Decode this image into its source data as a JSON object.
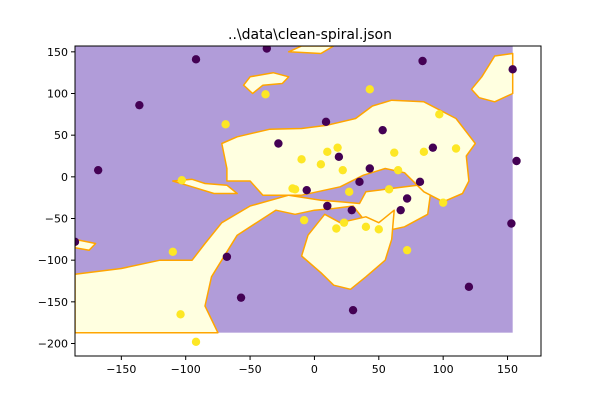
{
  "chart_data": {
    "type": "scatter",
    "title": "..\\data\\clean-spiral.json",
    "xlabel": "",
    "ylabel": "",
    "xlim": [
      -186,
      176
    ],
    "ylim": [
      -215,
      157
    ],
    "x_ticks": [
      -150,
      -100,
      -50,
      0,
      50,
      100,
      150
    ],
    "y_ticks": [
      150,
      100,
      50,
      0,
      -50,
      -100,
      -150,
      -200
    ],
    "grid": false,
    "legend": "none",
    "colors": {
      "region_class_0": "#b19cd9",
      "region_class_1": "#ffffe0",
      "boundary": "#ffa500",
      "class_0": "#440154",
      "class_1": "#fde725"
    },
    "decision_regions": {
      "extent": {
        "x": [
          -186,
          154
        ],
        "y": [
          -187,
          157
        ]
      },
      "background_class": 0,
      "class_1_regions": [
        [
          [
            -186,
            -187
          ],
          [
            -186,
            -117
          ],
          [
            -150,
            -110
          ],
          [
            -120,
            -100
          ],
          [
            -95,
            -100
          ],
          [
            -85,
            -80
          ],
          [
            -72,
            -55
          ],
          [
            -50,
            -35
          ],
          [
            -20,
            -22
          ],
          [
            5,
            -28
          ],
          [
            20,
            -30
          ],
          [
            35,
            -32
          ],
          [
            40,
            -18
          ],
          [
            55,
            -15
          ],
          [
            80,
            -10
          ],
          [
            90,
            -22
          ],
          [
            88,
            -45
          ],
          [
            70,
            -60
          ],
          [
            55,
            -65
          ],
          [
            48,
            -70
          ],
          [
            30,
            -35
          ],
          [
            15,
            -38
          ],
          [
            0,
            -40
          ],
          [
            -15,
            -45
          ],
          [
            -30,
            -40
          ],
          [
            -45,
            -55
          ],
          [
            -60,
            -70
          ],
          [
            -68,
            -90
          ],
          [
            -80,
            -120
          ],
          [
            -85,
            -155
          ],
          [
            -75,
            -187
          ]
        ],
        [
          [
            -68,
            -5
          ],
          [
            -50,
            -5
          ],
          [
            -40,
            -22
          ],
          [
            -10,
            -22
          ],
          [
            20,
            -12
          ],
          [
            38,
            2
          ],
          [
            55,
            10
          ],
          [
            70,
            5
          ],
          [
            85,
            -18
          ],
          [
            100,
            -30
          ],
          [
            115,
            -20
          ],
          [
            120,
            -5
          ],
          [
            118,
            25
          ],
          [
            125,
            40
          ],
          [
            110,
            70
          ],
          [
            85,
            90
          ],
          [
            60,
            92
          ],
          [
            45,
            85
          ],
          [
            32,
            70
          ],
          [
            10,
            62
          ],
          [
            -10,
            58
          ],
          [
            -35,
            57
          ],
          [
            -60,
            48
          ],
          [
            -72,
            40
          ],
          [
            -68,
            10
          ]
        ],
        [
          [
            -110,
            -5
          ],
          [
            -95,
            -3
          ],
          [
            -85,
            -8
          ],
          [
            -68,
            -10
          ],
          [
            -60,
            -20
          ],
          [
            -78,
            -20
          ],
          [
            -95,
            -12
          ]
        ],
        [
          [
            8,
            -45
          ],
          [
            20,
            -55
          ],
          [
            40,
            -48
          ],
          [
            50,
            -55
          ],
          [
            62,
            -40
          ],
          [
            60,
            -75
          ],
          [
            55,
            -100
          ],
          [
            40,
            -120
          ],
          [
            28,
            -135
          ],
          [
            15,
            -130
          ],
          [
            5,
            -115
          ],
          [
            -10,
            -95
          ],
          [
            -5,
            -70
          ]
        ],
        [
          [
            122,
            105
          ],
          [
            130,
            120
          ],
          [
            140,
            145
          ],
          [
            154,
            148
          ],
          [
            154,
            100
          ],
          [
            140,
            90
          ],
          [
            128,
            95
          ]
        ],
        [
          [
            -48,
            100
          ],
          [
            -40,
            110
          ],
          [
            -25,
            112
          ],
          [
            -20,
            120
          ],
          [
            -32,
            125
          ],
          [
            -50,
            120
          ],
          [
            -55,
            110
          ]
        ],
        [
          [
            -186,
            -75
          ],
          [
            -170,
            -80
          ],
          [
            -175,
            -88
          ],
          [
            -186,
            -85
          ]
        ],
        [
          [
            -20,
            150
          ],
          [
            -10,
            157
          ],
          [
            15,
            157
          ],
          [
            5,
            148
          ]
        ]
      ]
    },
    "series": [
      {
        "label_class": 0,
        "x": [
          -186,
          -168,
          -136,
          -92,
          -68,
          -57,
          -37,
          -28,
          -6,
          9,
          10,
          19,
          29,
          30,
          35,
          43,
          53,
          67,
          72,
          82,
          84,
          92,
          120,
          153,
          154,
          157
        ],
        "y": [
          -78,
          8,
          86,
          141,
          -96,
          -145,
          154,
          40,
          -16,
          66,
          -35,
          24,
          -40,
          -160,
          -6,
          10,
          56,
          -40,
          -26,
          -6,
          139,
          35,
          -132,
          -56,
          129,
          19
        ]
      },
      {
        "label_class": 1,
        "x": [
          -110,
          -104,
          -103,
          -92,
          -69,
          -38,
          -17,
          -15,
          -10,
          -8,
          5,
          10,
          18,
          17,
          22,
          23,
          27,
          40,
          43,
          50,
          58,
          62,
          65,
          72,
          85,
          97,
          100,
          110
        ],
        "y": [
          -90,
          -165,
          -4,
          -198,
          63,
          99,
          -14,
          -15,
          21,
          -52,
          15,
          30,
          35,
          -62,
          8,
          -55,
          -18,
          -60,
          105,
          -63,
          -15,
          29,
          8,
          -88,
          30,
          75,
          -31,
          34
        ]
      }
    ]
  }
}
